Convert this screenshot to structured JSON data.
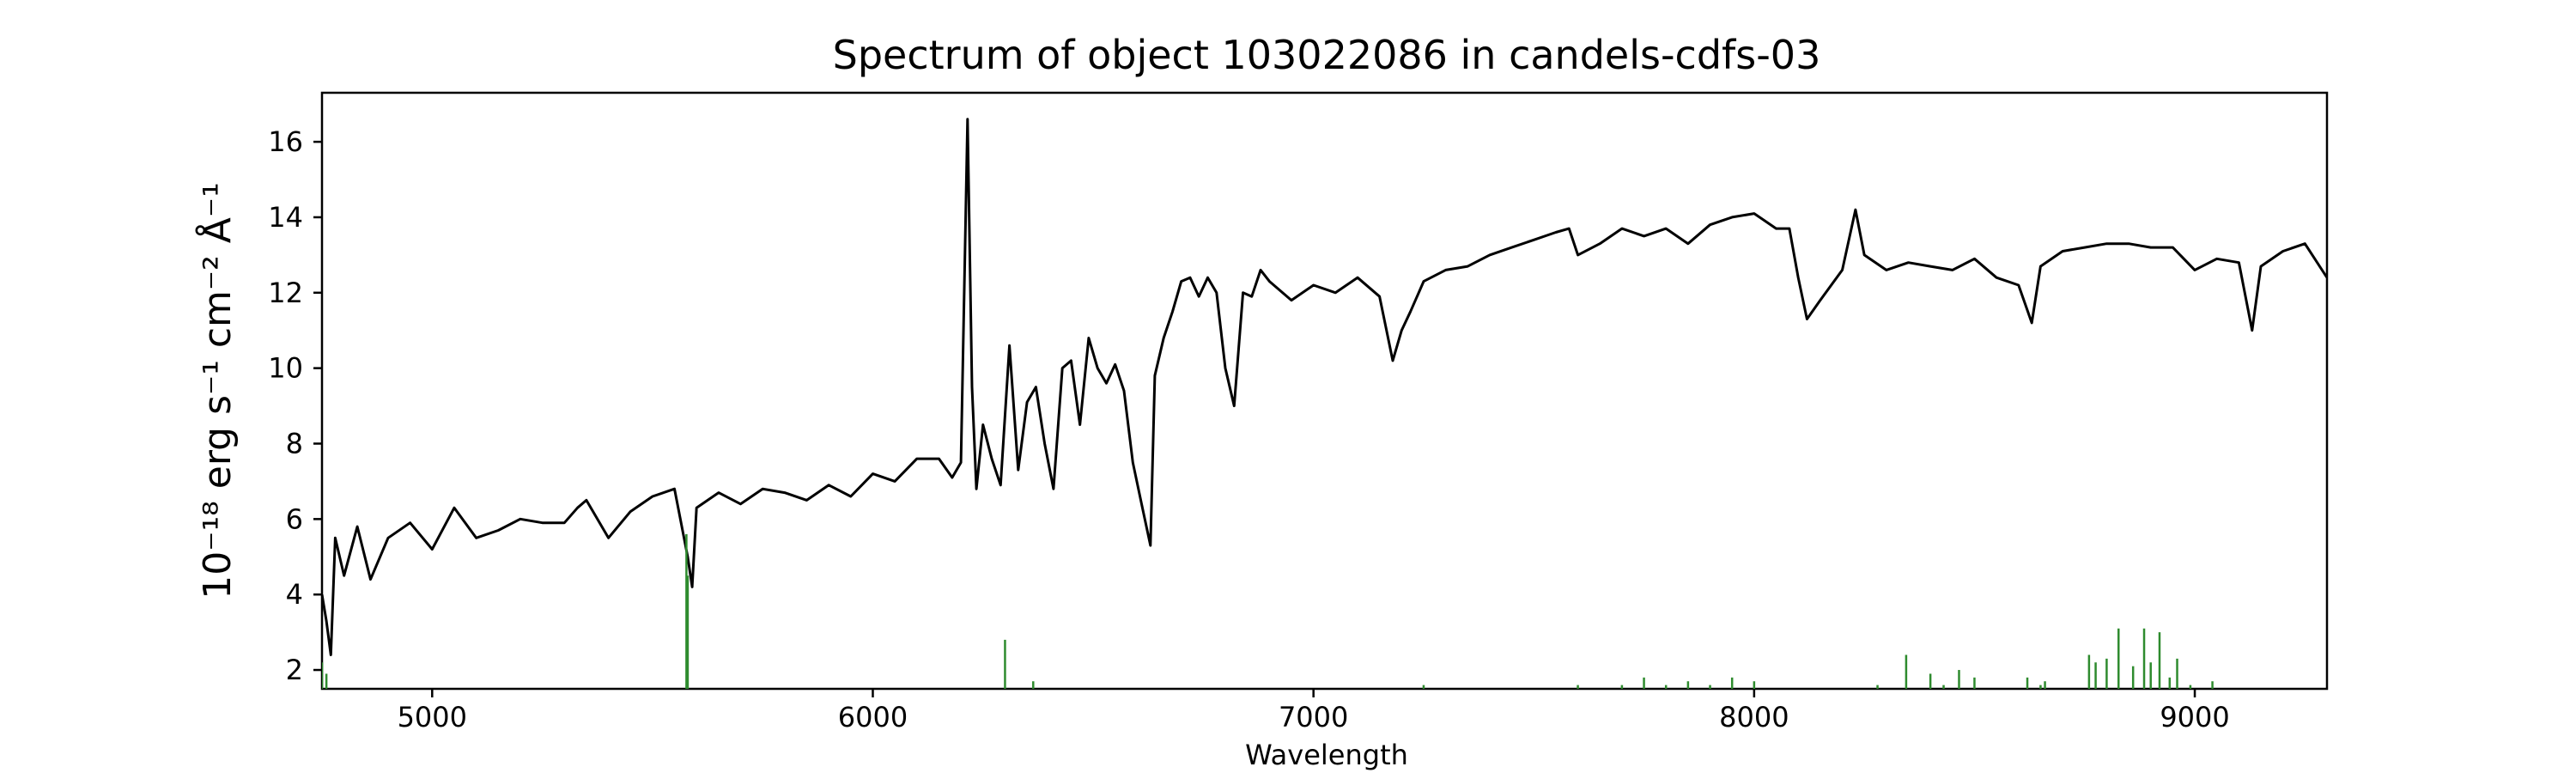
{
  "chart_data": {
    "type": "line",
    "title": "Spectrum of object 103022086 in candels-cdfs-03",
    "xlabel": "Wavelength",
    "ylabel": "10⁻¹⁸ erg s⁻¹ cm⁻² Å⁻¹",
    "xlim": [
      4750,
      9300
    ],
    "ylim": [
      1.5,
      17.3
    ],
    "xticks": [
      5000,
      6000,
      7000,
      8000,
      9000
    ],
    "yticks": [
      2,
      4,
      6,
      8,
      10,
      12,
      14,
      16
    ],
    "grid": false,
    "series": [
      {
        "color": "#000000",
        "style": "solid",
        "x": [
          4750,
          4760,
          4770,
          4780,
          4800,
          4830,
          4860,
          4900,
          4950,
          5000,
          5050,
          5100,
          5150,
          5200,
          5250,
          5300,
          5330,
          5350,
          5400,
          5450,
          5500,
          5550,
          5580,
          5590,
          5600,
          5650,
          5700,
          5750,
          5800,
          5850,
          5900,
          5950,
          6000,
          6050,
          6100,
          6150,
          6180,
          6200,
          6215,
          6225,
          6235,
          6250,
          6270,
          6290,
          6310,
          6330,
          6350,
          6370,
          6390,
          6410,
          6430,
          6450,
          6470,
          6490,
          6510,
          6530,
          6550,
          6570,
          6590,
          6610,
          6630,
          6640,
          6660,
          6680,
          6700,
          6720,
          6740,
          6760,
          6780,
          6800,
          6820,
          6840,
          6860,
          6880,
          6900,
          6950,
          7000,
          7050,
          7100,
          7150,
          7180,
          7200,
          7220,
          7250,
          7300,
          7350,
          7400,
          7450,
          7500,
          7550,
          7580,
          7600,
          7650,
          7700,
          7750,
          7800,
          7850,
          7900,
          7950,
          8000,
          8050,
          8080,
          8100,
          8120,
          8150,
          8200,
          8230,
          8250,
          8300,
          8350,
          8400,
          8450,
          8500,
          8550,
          8600,
          8630,
          8650,
          8700,
          8750,
          8800,
          8850,
          8900,
          8950,
          9000,
          9050,
          9100,
          9130,
          9150,
          9200,
          9250,
          9300
        ],
        "y": [
          4.0,
          3.3,
          2.4,
          5.5,
          4.5,
          5.8,
          4.4,
          5.5,
          5.9,
          5.2,
          6.3,
          5.5,
          5.7,
          6.0,
          5.9,
          5.9,
          6.3,
          6.5,
          5.5,
          6.2,
          6.6,
          6.8,
          5.0,
          4.2,
          6.3,
          6.7,
          6.4,
          6.8,
          6.7,
          6.5,
          6.9,
          6.6,
          7.2,
          7.0,
          7.6,
          7.6,
          7.1,
          7.5,
          16.6,
          9.5,
          6.8,
          8.5,
          7.6,
          6.9,
          10.6,
          7.3,
          9.1,
          9.5,
          8.0,
          6.8,
          10.0,
          10.2,
          8.5,
          10.8,
          10.0,
          9.6,
          10.1,
          9.4,
          7.5,
          6.4,
          5.3,
          9.8,
          10.8,
          11.5,
          12.3,
          12.4,
          11.9,
          12.4,
          12.0,
          10.0,
          9.0,
          12.0,
          11.9,
          12.6,
          12.3,
          11.8,
          12.2,
          12.0,
          12.4,
          11.9,
          10.2,
          11.0,
          11.5,
          12.3,
          12.6,
          12.7,
          13.0,
          13.2,
          13.4,
          13.6,
          13.7,
          13.0,
          13.3,
          13.7,
          13.5,
          13.7,
          13.3,
          13.8,
          14.0,
          14.1,
          13.7,
          13.7,
          12.4,
          11.3,
          11.8,
          12.6,
          14.2,
          13.0,
          12.6,
          12.8,
          12.7,
          12.6,
          12.9,
          12.4,
          12.2,
          11.2,
          12.7,
          13.1,
          13.2,
          13.3,
          13.3,
          13.2,
          13.2,
          12.6,
          12.9,
          12.8,
          11.0,
          12.7,
          13.1,
          13.3,
          12.4
        ]
      },
      {
        "color": "#2e8b2e",
        "style": "sky-lines",
        "x": [
          4750,
          4760,
          5577,
          5580,
          6300,
          6364,
          7250,
          7600,
          7700,
          7750,
          7800,
          7850,
          7900,
          7950,
          8000,
          8280,
          8345,
          8400,
          8430,
          8465,
          8500,
          8620,
          8650,
          8660,
          8760,
          8775,
          8800,
          8827,
          8860,
          8885,
          8900,
          8920,
          8943,
          8960,
          8990,
          9040
        ],
        "y": [
          2.2,
          1.9,
          5.6,
          4.5,
          2.8,
          1.7,
          1.6,
          1.6,
          1.6,
          1.8,
          1.6,
          1.7,
          1.6,
          1.8,
          1.7,
          1.6,
          2.4,
          1.9,
          1.6,
          2.0,
          1.8,
          1.8,
          1.6,
          1.7,
          2.4,
          2.2,
          2.3,
          3.1,
          2.1,
          3.1,
          2.2,
          3.0,
          1.8,
          2.3,
          1.6,
          1.7
        ]
      }
    ]
  }
}
